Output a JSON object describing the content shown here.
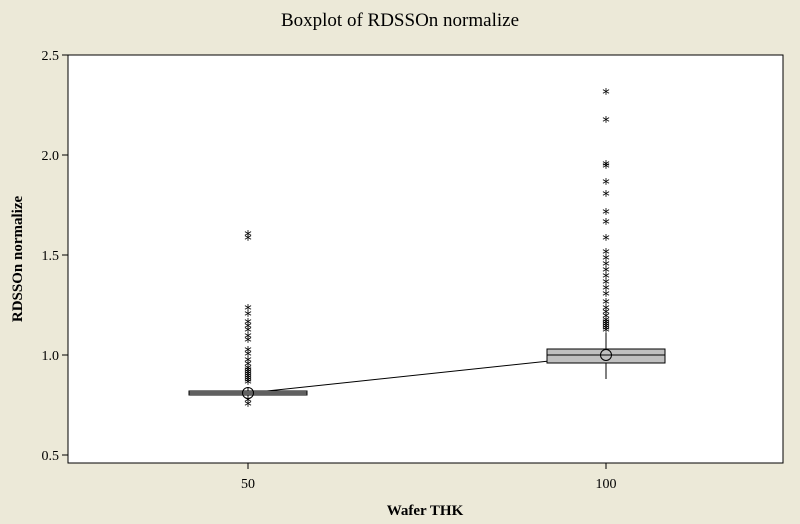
{
  "chart_data": {
    "type": "boxplot",
    "title": "Boxplot of RDSSOn normalize",
    "xlabel": "Wafer THK",
    "ylabel": "RDSSOn normalize",
    "ylim": [
      0.5,
      2.5
    ],
    "yticks": [
      "0.5",
      "1.0",
      "1.5",
      "2.0",
      "2.5"
    ],
    "categories": [
      "50",
      "100"
    ],
    "grid": false,
    "legend": "none",
    "colors": {
      "box_fill": "#C0C0C0",
      "plot_bg": "#FFFFFF",
      "frame_bg": "#ECE9D8",
      "ink": "#000000"
    },
    "boxes": [
      {
        "category": "50",
        "q1": 0.8,
        "median": 0.81,
        "q3": 0.82,
        "whisker_low": 0.79,
        "whisker_high": 0.84,
        "mean": 0.81,
        "outliers": [
          0.75,
          0.77,
          0.86,
          0.87,
          0.88,
          0.89,
          0.9,
          0.91,
          0.92,
          0.93,
          0.95,
          0.97,
          1.0,
          1.02,
          1.07,
          1.09,
          1.12,
          1.14,
          1.16,
          1.2,
          1.23,
          1.58,
          1.6
        ]
      },
      {
        "category": "100",
        "q1": 0.96,
        "median": 1.0,
        "q3": 1.03,
        "whisker_low": 0.88,
        "whisker_high": 1.11,
        "mean": 1.0,
        "outliers": [
          1.12,
          1.13,
          1.14,
          1.15,
          1.16,
          1.17,
          1.19,
          1.21,
          1.23,
          1.26,
          1.3,
          1.33,
          1.36,
          1.39,
          1.42,
          1.45,
          1.48,
          1.51,
          1.58,
          1.66,
          1.71,
          1.8,
          1.86,
          1.94,
          1.95,
          2.17,
          2.31
        ]
      }
    ]
  }
}
